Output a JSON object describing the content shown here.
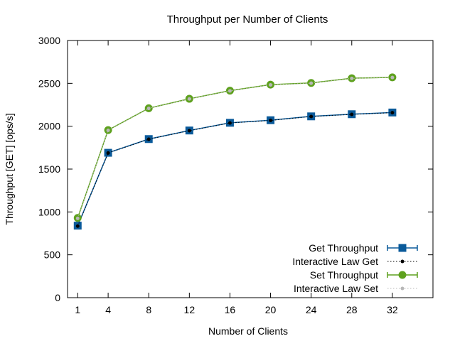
{
  "chart_data": {
    "type": "line",
    "title": "Throughput per Number of Clients",
    "xlabel": "Number of Clients",
    "ylabel": "Throughput [GET] [ops/s]",
    "xlim": [
      0,
      36
    ],
    "ylim": [
      0,
      3000
    ],
    "xticks": [
      1,
      4,
      8,
      12,
      16,
      20,
      24,
      28,
      32
    ],
    "yticks": [
      0,
      500,
      1000,
      1500,
      2000,
      2500,
      3000
    ],
    "grid": false,
    "legend_position": "bottom-right",
    "x": [
      1,
      4,
      8,
      12,
      16,
      20,
      24,
      28,
      32
    ],
    "series": [
      {
        "name": "Get Throughput",
        "color": "#0a5a9a",
        "marker": "square",
        "style": "solid-errorbar",
        "values": [
          840,
          1690,
          1850,
          1950,
          2040,
          2070,
          2115,
          2140,
          2160
        ]
      },
      {
        "name": "Interactive Law Get",
        "color": "#000000",
        "marker": "dot",
        "style": "dotted",
        "values": [
          835,
          1688,
          1848,
          1948,
          2038,
          2068,
          2113,
          2138,
          2158
        ]
      },
      {
        "name": "Set Throughput",
        "color": "#5ea11e",
        "marker": "circle",
        "style": "solid-errorbar",
        "values": [
          930,
          1955,
          2210,
          2320,
          2415,
          2485,
          2505,
          2560,
          2570
        ]
      },
      {
        "name": "Interactive Law Set",
        "color": "#b8b8b8",
        "marker": "dot",
        "style": "dotted",
        "values": [
          925,
          1952,
          2208,
          2318,
          2412,
          2482,
          2502,
          2558,
          2568
        ]
      }
    ]
  }
}
